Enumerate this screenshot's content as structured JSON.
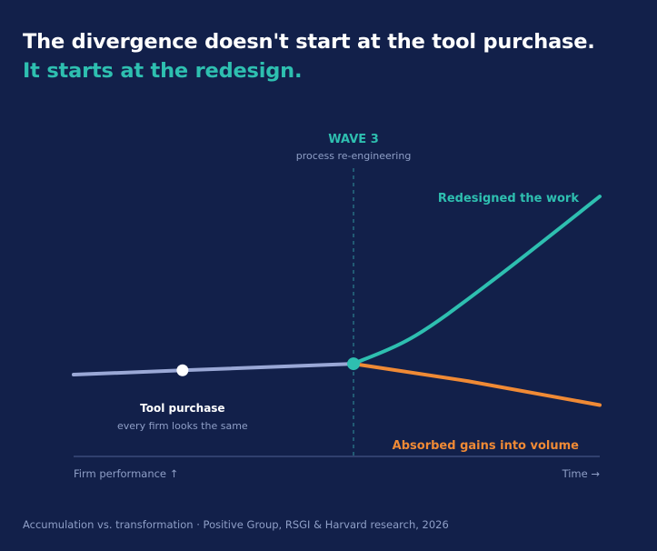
{
  "headline": {
    "line1": "The divergence doesn't start at the tool purchase.",
    "line2": "It starts at the redesign."
  },
  "caption": "Accumulation vs. transformation · Positive Group, RSGI & Harvard research, 2026",
  "colors": {
    "background": "#12204a",
    "baseline": "#9aa8d6",
    "redesigned": "#2ebfb0",
    "absorbed": "#f08a35",
    "wave_marker": "#2ebfb0",
    "axis": "#3a4a7a"
  },
  "chart_data": {
    "type": "line",
    "xlim": [
      0,
      100
    ],
    "ylim": [
      0,
      100
    ],
    "xlabel": "Time →",
    "ylabel": "Firm performance ↑",
    "series": [
      {
        "key": "baseline",
        "x": [
          0,
          20.7,
          53.2
        ],
        "y": [
          5,
          7,
          10
        ]
      },
      {
        "key": "redesigned",
        "name": "Redesigned the work",
        "x": [
          53.2,
          65,
          80,
          100
        ],
        "y": [
          10,
          23,
          49,
          87
        ]
      },
      {
        "key": "absorbed",
        "name": "Absorbed gains into volume",
        "x": [
          53.2,
          75,
          100
        ],
        "y": [
          10,
          2,
          -9
        ]
      }
    ],
    "markers": [
      {
        "key": "tool",
        "label": "Tool purchase",
        "sublabel": "every firm looks the same",
        "x": 20.7,
        "y": 7
      },
      {
        "key": "wave",
        "x": 53.2,
        "y": 10
      }
    ],
    "vline": {
      "x": 53.2,
      "label": "WAVE 3",
      "sublabel": "process re-engineering"
    }
  }
}
